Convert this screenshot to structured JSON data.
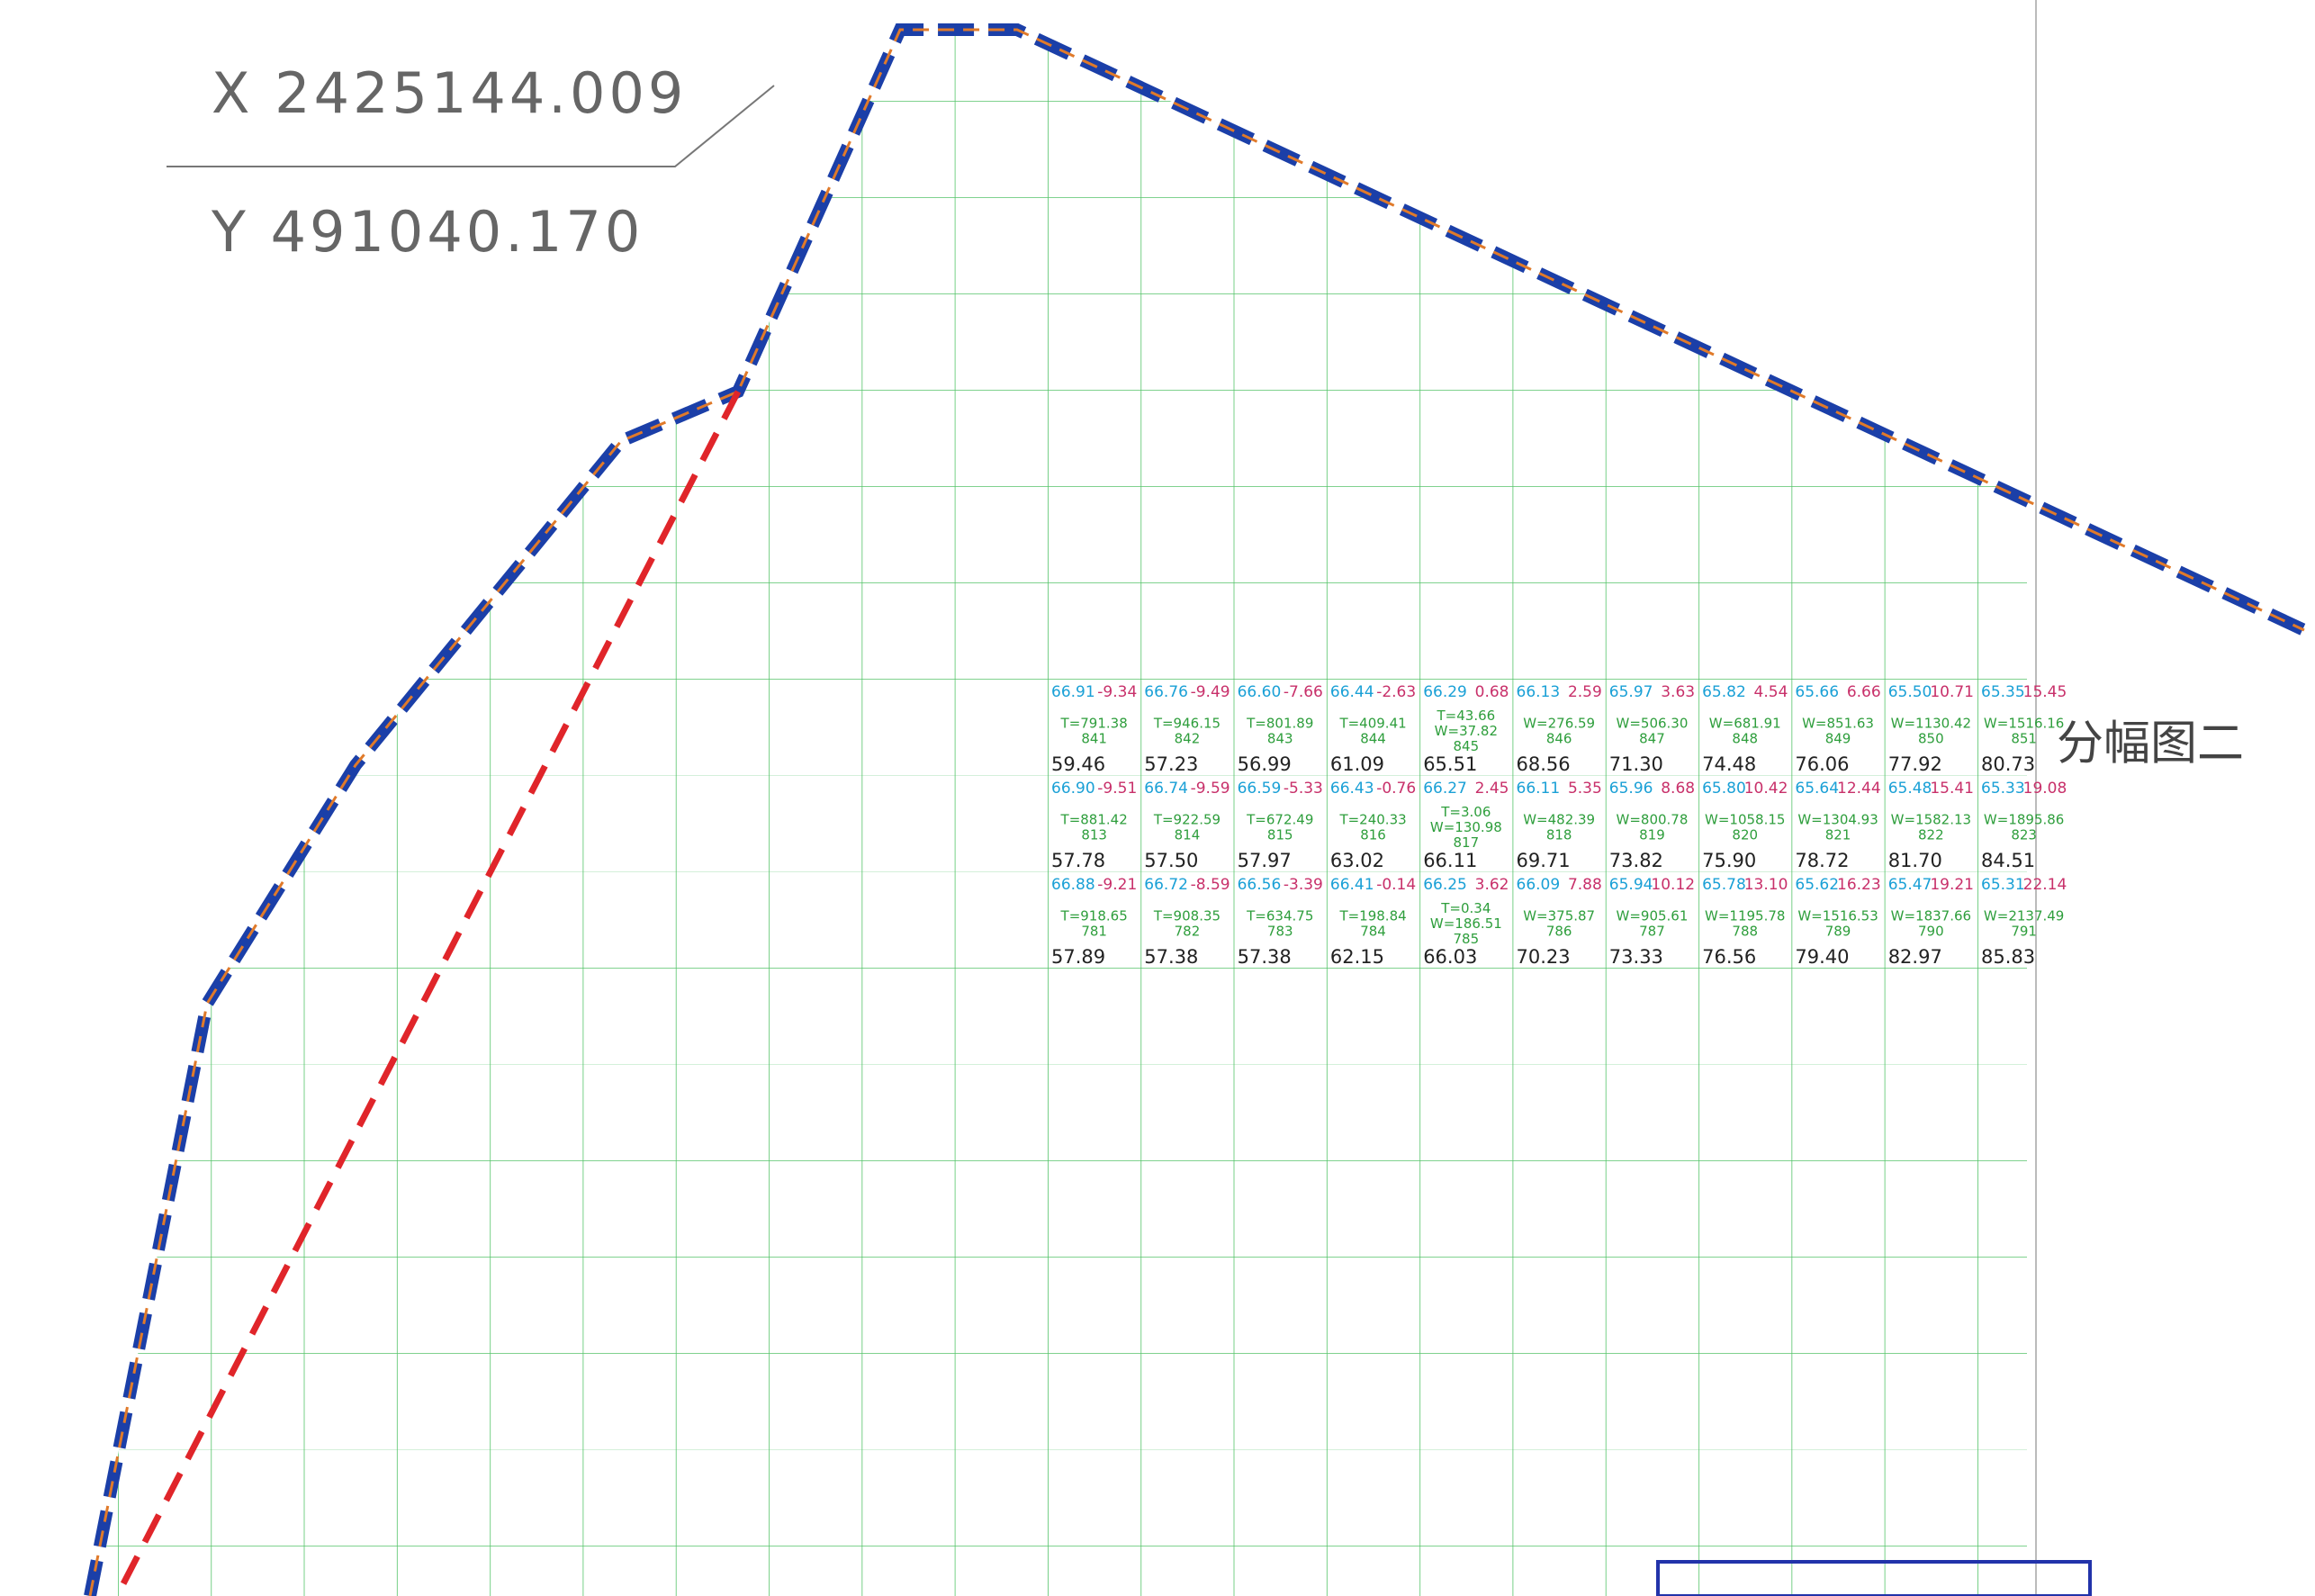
{
  "map": {
    "coordinates": {
      "x": "X 2425144.009",
      "y": "Y 491040.170"
    },
    "sheet_label": "分幅图二",
    "rows": [
      {
        "cells": [
          {
            "design": "66.91",
            "delta": "-9.34",
            "volume": [
              "T=791.38"
            ],
            "id": "841",
            "ground": "59.46"
          },
          {
            "design": "66.76",
            "delta": "-9.49",
            "volume": [
              "T=946.15"
            ],
            "id": "842",
            "ground": "57.23"
          },
          {
            "design": "66.60",
            "delta": "-7.66",
            "volume": [
              "T=801.89"
            ],
            "id": "843",
            "ground": "56.99"
          },
          {
            "design": "66.44",
            "delta": "-2.63",
            "volume": [
              "T=409.41"
            ],
            "id": "844",
            "ground": "61.09"
          },
          {
            "design": "66.29",
            "delta": "0.68",
            "volume": [
              "T=43.66",
              "W=37.82"
            ],
            "id": "845",
            "ground": "65.51"
          },
          {
            "design": "66.13",
            "delta": "2.59",
            "volume": [
              "W=276.59"
            ],
            "id": "846",
            "ground": "68.56"
          },
          {
            "design": "65.97",
            "delta": "3.63",
            "volume": [
              "W=506.30"
            ],
            "id": "847",
            "ground": "71.30"
          },
          {
            "design": "65.82",
            "delta": "4.54",
            "volume": [
              "W=681.91"
            ],
            "id": "848",
            "ground": "74.48"
          },
          {
            "design": "65.66",
            "delta": "6.66",
            "volume": [
              "W=851.63"
            ],
            "id": "849",
            "ground": "76.06"
          },
          {
            "design": "65.50",
            "delta": "10.71",
            "volume": [
              "W=1130.42"
            ],
            "id": "850",
            "ground": "77.92"
          },
          {
            "design": "65.35",
            "delta": "15.45",
            "volume": [
              "W=1516.16"
            ],
            "id": "851",
            "ground": "80.73"
          }
        ]
      },
      {
        "cells": [
          {
            "design": "66.90",
            "delta": "-9.51",
            "volume": [
              "T=881.42"
            ],
            "id": "813",
            "ground": "57.78"
          },
          {
            "design": "66.74",
            "delta": "-9.59",
            "volume": [
              "T=922.59"
            ],
            "id": "814",
            "ground": "57.50"
          },
          {
            "design": "66.59",
            "delta": "-5.33",
            "volume": [
              "T=672.49"
            ],
            "id": "815",
            "ground": "57.97"
          },
          {
            "design": "66.43",
            "delta": "-0.76",
            "volume": [
              "T=240.33"
            ],
            "id": "816",
            "ground": "63.02"
          },
          {
            "design": "66.27",
            "delta": "2.45",
            "volume": [
              "T=3.06",
              "W=130.98"
            ],
            "id": "817",
            "ground": "66.11"
          },
          {
            "design": "66.11",
            "delta": "5.35",
            "volume": [
              "W=482.39"
            ],
            "id": "818",
            "ground": "69.71"
          },
          {
            "design": "65.96",
            "delta": "8.68",
            "volume": [
              "W=800.78"
            ],
            "id": "819",
            "ground": "73.82"
          },
          {
            "design": "65.80",
            "delta": "10.42",
            "volume": [
              "W=1058.15"
            ],
            "id": "820",
            "ground": "75.90"
          },
          {
            "design": "65.64",
            "delta": "12.44",
            "volume": [
              "W=1304.93"
            ],
            "id": "821",
            "ground": "78.72"
          },
          {
            "design": "65.48",
            "delta": "15.41",
            "volume": [
              "W=1582.13"
            ],
            "id": "822",
            "ground": "81.70"
          },
          {
            "design": "65.33",
            "delta": "19.08",
            "volume": [
              "W=1895.86"
            ],
            "id": "823",
            "ground": "84.51"
          }
        ]
      },
      {
        "cells": [
          {
            "design": "66.88",
            "delta": "-9.21",
            "volume": [
              "T=918.65"
            ],
            "id": "781",
            "ground": "57.89"
          },
          {
            "design": "66.72",
            "delta": "-8.59",
            "volume": [
              "T=908.35"
            ],
            "id": "782",
            "ground": "57.38"
          },
          {
            "design": "66.56",
            "delta": "-3.39",
            "volume": [
              "T=634.75"
            ],
            "id": "783",
            "ground": "57.38"
          },
          {
            "design": "66.41",
            "delta": "-0.14",
            "volume": [
              "T=198.84"
            ],
            "id": "784",
            "ground": "62.15"
          },
          {
            "design": "66.25",
            "delta": "3.62",
            "volume": [
              "T=0.34",
              "W=186.51"
            ],
            "id": "785",
            "ground": "66.03"
          },
          {
            "design": "66.09",
            "delta": "7.88",
            "volume": [
              "W=375.87"
            ],
            "id": "786",
            "ground": "70.23"
          },
          {
            "design": "65.94",
            "delta": "10.12",
            "volume": [
              "W=905.61"
            ],
            "id": "787",
            "ground": "73.33"
          },
          {
            "design": "65.78",
            "delta": "13.10",
            "volume": [
              "W=1195.78"
            ],
            "id": "788",
            "ground": "76.56"
          },
          {
            "design": "65.62",
            "delta": "16.23",
            "volume": [
              "W=1516.53"
            ],
            "id": "789",
            "ground": "79.40"
          },
          {
            "design": "65.47",
            "delta": "19.21",
            "volume": [
              "W=1837.66"
            ],
            "id": "790",
            "ground": "82.97"
          },
          {
            "design": "65.31",
            "delta": "22.14",
            "volume": [
              "W=2137.49"
            ],
            "id": "791",
            "ground": "85.83"
          }
        ]
      }
    ]
  }
}
